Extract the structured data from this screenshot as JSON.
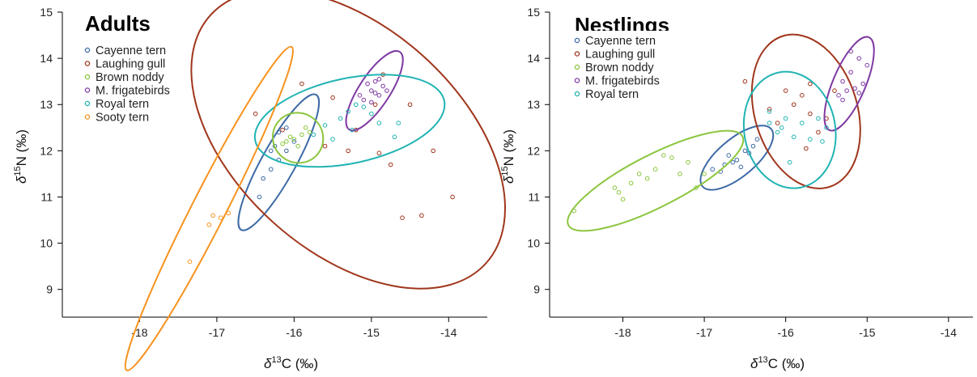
{
  "chart_data": [
    {
      "type": "scatter",
      "title": "Adults",
      "xlabel": {
        "symbol": "δ",
        "sup": "13",
        "rest": "C (‰)"
      },
      "ylabel": {
        "symbol": "δ",
        "sup": "15",
        "rest": "N (‰)"
      },
      "xlim": [
        -19,
        -13.5
      ],
      "ylim": [
        8.4,
        15
      ],
      "xticks": [
        -18,
        -17,
        -16,
        -15,
        -14
      ],
      "yticks": [
        9,
        10,
        11,
        12,
        13,
        14,
        15
      ],
      "grid": false,
      "legend_position": "top-left",
      "series": [
        {
          "name": "Cayenne tern",
          "color": "#3c6aa6",
          "points": [
            [
              -16.3,
              12.0
            ],
            [
              -16.2,
              12.4
            ],
            [
              -16.1,
              12.0
            ],
            [
              -16.2,
              11.8
            ],
            [
              -16.4,
              11.4
            ],
            [
              -16.45,
              11.0
            ],
            [
              -16.3,
              11.6
            ],
            [
              -16.0,
              12.2
            ],
            [
              -16.1,
              12.5
            ],
            [
              -16.25,
              12.1
            ]
          ],
          "ellipse": {
            "cx": -16.2,
            "cy": 11.75,
            "rx": 1.0,
            "ry": 0.22,
            "angle": 61
          }
        },
        {
          "name": "Laughing gull",
          "color": "#a0361c",
          "points": [
            [
              -15.9,
              13.45
            ],
            [
              -16.5,
              12.8
            ],
            [
              -15.5,
              13.15
            ],
            [
              -15.2,
              12.45
            ],
            [
              -14.95,
              13.0
            ],
            [
              -14.5,
              13.0
            ],
            [
              -14.2,
              12.0
            ],
            [
              -13.95,
              11.0
            ],
            [
              -14.35,
              10.6
            ],
            [
              -14.6,
              10.55
            ],
            [
              -14.75,
              11.7
            ],
            [
              -14.9,
              11.95
            ],
            [
              -15.6,
              12.1
            ],
            [
              -15.3,
              12.0
            ],
            [
              -16.15,
              12.45
            ],
            [
              -14.85,
              13.65
            ]
          ],
          "ellipse": {
            "cx": -15.3,
            "cy": 12.25,
            "rx": 2.4,
            "ry": 1.45,
            "angle": -42
          }
        },
        {
          "name": "Brown noddy",
          "color": "#8cc63f",
          "points": [
            [
              -16.05,
              12.3
            ],
            [
              -15.9,
              12.35
            ],
            [
              -16.1,
              12.2
            ],
            [
              -15.95,
              12.1
            ],
            [
              -15.8,
              12.4
            ],
            [
              -16.15,
              12.15
            ],
            [
              -15.85,
              12.5
            ],
            [
              -16.0,
              12.25
            ]
          ],
          "ellipse": {
            "cx": -15.95,
            "cy": 12.28,
            "rx": 0.33,
            "ry": 0.32,
            "angle": -40
          }
        },
        {
          "name": "M. frigatebirds",
          "color": "#7f3aa3",
          "points": [
            [
              -15.05,
              13.45
            ],
            [
              -14.95,
              13.5
            ],
            [
              -15.0,
              13.3
            ],
            [
              -14.9,
              13.2
            ],
            [
              -15.1,
              13.1
            ],
            [
              -14.95,
              13.25
            ],
            [
              -14.85,
              13.4
            ],
            [
              -15.0,
              13.05
            ],
            [
              -14.9,
              13.55
            ],
            [
              -15.15,
              13.2
            ],
            [
              -14.8,
              13.3
            ]
          ],
          "ellipse": {
            "cx": -14.96,
            "cy": 13.3,
            "rx": 0.6,
            "ry": 0.2,
            "angle": 57
          }
        },
        {
          "name": "Royal tern",
          "color": "#22b3b3",
          "points": [
            [
              -15.3,
              12.85
            ],
            [
              -15.2,
              13.0
            ],
            [
              -15.0,
              12.8
            ],
            [
              -14.9,
              12.6
            ],
            [
              -15.4,
              12.7
            ],
            [
              -15.1,
              12.95
            ],
            [
              -14.7,
              12.3
            ],
            [
              -14.65,
              12.6
            ],
            [
              -15.6,
              12.55
            ],
            [
              -15.25,
              12.45
            ],
            [
              -15.5,
              12.25
            ],
            [
              -15.75,
              12.35
            ]
          ],
          "ellipse": {
            "cx": -15.28,
            "cy": 12.65,
            "rx": 1.25,
            "ry": 0.55,
            "angle": 12
          }
        },
        {
          "name": "Sooty tern",
          "color": "#f7931e",
          "points": [
            [
              -17.05,
              10.6
            ],
            [
              -16.85,
              10.65
            ],
            [
              -17.1,
              10.4
            ],
            [
              -16.95,
              10.55
            ],
            [
              -17.35,
              9.6
            ]
          ],
          "ellipse": {
            "cx": -17.1,
            "cy": 10.75,
            "rx": 2.35,
            "ry": 0.22,
            "angle": 63
          }
        }
      ]
    },
    {
      "type": "scatter",
      "title": "Nestlings",
      "xlabel": {
        "symbol": "δ",
        "sup": "13",
        "rest": "C (‰)"
      },
      "ylabel": {
        "symbol": "δ",
        "sup": "15",
        "rest": "N (‰)"
      },
      "xlim": [
        -18.9,
        -13.7
      ],
      "ylim": [
        8.4,
        15
      ],
      "xticks": [
        -18,
        -17,
        -16,
        -15,
        -14
      ],
      "yticks": [
        9,
        10,
        11,
        12,
        13,
        14,
        15
      ],
      "grid": false,
      "legend_position": "top-left",
      "series": [
        {
          "name": "Cayenne tern",
          "color": "#3c6aa6",
          "points": [
            [
              -16.9,
              11.6
            ],
            [
              -16.75,
              11.7
            ],
            [
              -16.6,
              11.8
            ],
            [
              -16.7,
              11.9
            ],
            [
              -16.5,
              12.0
            ],
            [
              -16.4,
              12.1
            ],
            [
              -16.8,
              11.55
            ],
            [
              -16.55,
              11.65
            ],
            [
              -16.35,
              12.25
            ],
            [
              -16.65,
              11.75
            ],
            [
              -16.45,
              11.95
            ]
          ],
          "ellipse": {
            "cx": -16.6,
            "cy": 11.85,
            "rx": 0.55,
            "ry": 0.23,
            "angle": 40
          }
        },
        {
          "name": "Laughing gull",
          "color": "#a0361c",
          "points": [
            [
              -16.5,
              13.5
            ],
            [
              -16.0,
              13.3
            ],
            [
              -15.7,
              13.45
            ],
            [
              -15.8,
              13.2
            ],
            [
              -15.9,
              13.0
            ],
            [
              -15.7,
              12.8
            ],
            [
              -16.1,
              12.6
            ],
            [
              -15.5,
              12.7
            ],
            [
              -15.6,
              12.4
            ],
            [
              -16.2,
              12.9
            ],
            [
              -15.4,
              13.3
            ],
            [
              -15.75,
              12.05
            ]
          ],
          "ellipse": {
            "cx": -15.75,
            "cy": 12.85,
            "rx": 0.63,
            "ry": 0.97,
            "angle": 17
          }
        },
        {
          "name": "Brown noddy",
          "color": "#8cc63f",
          "points": [
            [
              -18.6,
              10.7
            ],
            [
              -18.1,
              11.2
            ],
            [
              -17.9,
              11.3
            ],
            [
              -17.8,
              11.5
            ],
            [
              -17.6,
              11.6
            ],
            [
              -17.4,
              11.85
            ],
            [
              -17.2,
              11.75
            ],
            [
              -17.1,
              11.2
            ],
            [
              -18.0,
              10.95
            ],
            [
              -17.5,
              11.9
            ],
            [
              -17.3,
              11.5
            ],
            [
              -17.7,
              11.4
            ],
            [
              -17.0,
              11.5
            ],
            [
              -18.05,
              11.1
            ]
          ],
          "ellipse": {
            "cx": -17.6,
            "cy": 11.35,
            "rx": 1.2,
            "ry": 0.32,
            "angle": 27
          }
        },
        {
          "name": "M. frigatebirds",
          "color": "#7f3aa3",
          "points": [
            [
              -15.2,
              14.15
            ],
            [
              -15.1,
              14.0
            ],
            [
              -15.0,
              13.85
            ],
            [
              -15.2,
              13.7
            ],
            [
              -15.3,
              13.5
            ],
            [
              -15.05,
              13.45
            ],
            [
              -15.25,
              13.3
            ],
            [
              -15.1,
              13.25
            ],
            [
              -15.35,
              13.2
            ],
            [
              -15.15,
              13.35
            ],
            [
              -15.3,
              13.1
            ]
          ],
          "ellipse": {
            "cx": -15.22,
            "cy": 13.45,
            "rx": 0.62,
            "ry": 0.2,
            "angle": 67
          }
        },
        {
          "name": "Royal tern",
          "color": "#22b3b3",
          "points": [
            [
              -16.2,
              12.85
            ],
            [
              -16.0,
              12.7
            ],
            [
              -15.8,
              12.6
            ],
            [
              -16.1,
              12.4
            ],
            [
              -15.9,
              12.3
            ],
            [
              -15.6,
              12.7
            ],
            [
              -15.5,
              12.5
            ],
            [
              -15.7,
              12.25
            ],
            [
              -16.2,
              12.6
            ],
            [
              -15.95,
              11.75
            ],
            [
              -15.55,
              12.2
            ],
            [
              -16.05,
              12.5
            ]
          ],
          "ellipse": {
            "cx": -15.95,
            "cy": 12.45,
            "rx": 0.56,
            "ry": 0.72,
            "angle": 10
          }
        }
      ]
    }
  ]
}
